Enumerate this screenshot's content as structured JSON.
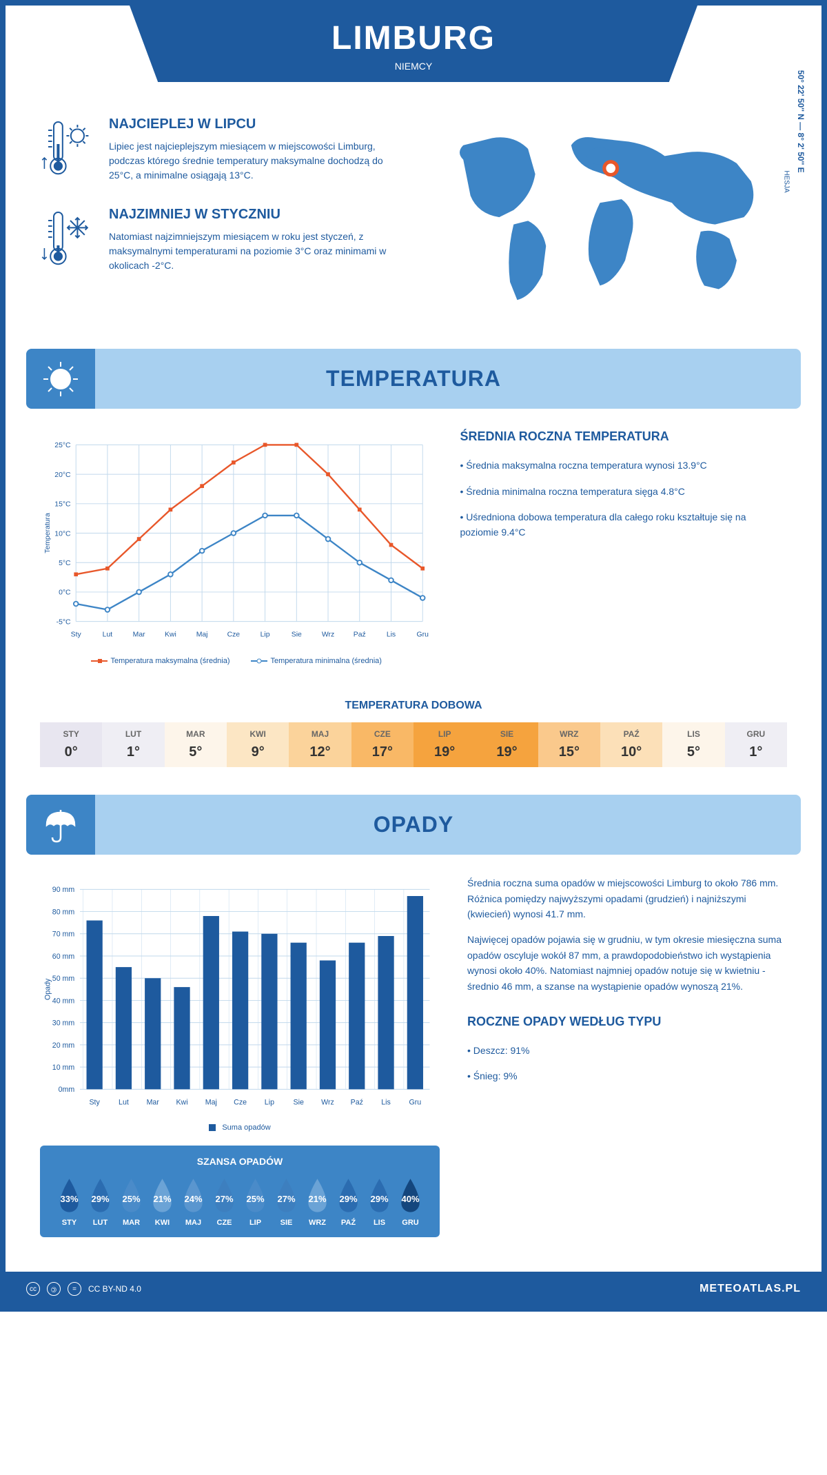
{
  "header": {
    "title": "LIMBURG",
    "subtitle": "NIEMCY"
  },
  "coords": "50° 22' 50'' N — 8° 2' 50'' E",
  "region": "HESJA",
  "warmest": {
    "title": "NAJCIEPLEJ W LIPCU",
    "text": "Lipiec jest najcieplejszym miesiącem w miejscowości Limburg, podczas którego średnie temperatury maksymalne dochodzą do 25°C, a minimalne osiągają 13°C."
  },
  "coldest": {
    "title": "NAJZIMNIEJ W STYCZNIU",
    "text": "Natomiast najzimniejszym miesiącem w roku jest styczeń, z maksymalnymi temperaturami na poziomie 3°C oraz minimami w okolicach -2°C."
  },
  "temp_section": {
    "title": "TEMPERATURA"
  },
  "temp_chart": {
    "type": "line",
    "months": [
      "Sty",
      "Lut",
      "Mar",
      "Kwi",
      "Maj",
      "Cze",
      "Lip",
      "Sie",
      "Wrz",
      "Paź",
      "Lis",
      "Gru"
    ],
    "max_series": [
      3,
      4,
      9,
      14,
      18,
      22,
      25,
      25,
      20,
      14,
      8,
      4
    ],
    "min_series": [
      -2,
      -3,
      0,
      3,
      7,
      10,
      13,
      13,
      9,
      5,
      2,
      -1
    ],
    "max_color": "#e8572a",
    "min_color": "#3d85c6",
    "ylim": [
      -5,
      25
    ],
    "ytick_step": 5,
    "yticks": [
      "-5°C",
      "0°C",
      "5°C",
      "10°C",
      "15°C",
      "20°C",
      "25°C"
    ],
    "ylabel": "Temperatura",
    "grid_color": "#c0d8ec",
    "legend_max": "Temperatura maksymalna (średnia)",
    "legend_min": "Temperatura minimalna (średnia)"
  },
  "temp_desc": {
    "title": "ŚREDNIA ROCZNA TEMPERATURA",
    "p1": "• Średnia maksymalna roczna temperatura wynosi 13.9°C",
    "p2": "• Średnia minimalna roczna temperatura sięga 4.8°C",
    "p3": "• Uśredniona dobowa temperatura dla całego roku kształtuje się na poziomie 9.4°C"
  },
  "daily_temp": {
    "title": "TEMPERATURA DOBOWA",
    "months": [
      "STY",
      "LUT",
      "MAR",
      "KWI",
      "MAJ",
      "CZE",
      "LIP",
      "SIE",
      "WRZ",
      "PAŹ",
      "LIS",
      "GRU"
    ],
    "values": [
      "0°",
      "1°",
      "5°",
      "9°",
      "12°",
      "17°",
      "19°",
      "19°",
      "15°",
      "10°",
      "5°",
      "1°"
    ],
    "colors": [
      "#e8e6f0",
      "#efeef4",
      "#fdf5ea",
      "#fce6c4",
      "#fbd39b",
      "#f9b866",
      "#f5a33e",
      "#f5a33e",
      "#fac98c",
      "#fce0b8",
      "#fdf5ea",
      "#efeef4"
    ]
  },
  "rain_section": {
    "title": "OPADY"
  },
  "rain_chart": {
    "type": "bar",
    "months": [
      "Sty",
      "Lut",
      "Mar",
      "Kwi",
      "Maj",
      "Cze",
      "Lip",
      "Sie",
      "Wrz",
      "Paź",
      "Lis",
      "Gru"
    ],
    "values": [
      76,
      55,
      50,
      46,
      78,
      71,
      70,
      66,
      58,
      66,
      69,
      87
    ],
    "bar_color": "#1e5a9e",
    "ylim": [
      0,
      90
    ],
    "ytick_step": 10,
    "yticks": [
      "0mm",
      "10 mm",
      "20 mm",
      "30 mm",
      "40 mm",
      "50 mm",
      "60 mm",
      "70 mm",
      "80 mm",
      "90 mm"
    ],
    "ylabel": "Opady",
    "legend": "Suma opadów",
    "grid_color": "#c0d8ec"
  },
  "rain_desc": {
    "p1": "Średnia roczna suma opadów w miejscowości Limburg to około 786 mm. Różnica pomiędzy najwyższymi opadami (grudzień) i najniższymi (kwiecień) wynosi 41.7 mm.",
    "p2": "Najwięcej opadów pojawia się w grudniu, w tym okresie miesięczna suma opadów oscyluje wokół 87 mm, a prawdopodobieństwo ich wystąpienia wynosi około 40%. Natomiast najmniej opadów notuje się w kwietniu - średnio 46 mm, a szanse na wystąpienie opadów wynoszą 21%."
  },
  "rain_chance": {
    "title": "SZANSA OPADÓW",
    "months": [
      "STY",
      "LUT",
      "MAR",
      "KWI",
      "MAJ",
      "CZE",
      "LIP",
      "SIE",
      "WRZ",
      "PAŹ",
      "LIS",
      "GRU"
    ],
    "values": [
      "33%",
      "29%",
      "25%",
      "21%",
      "24%",
      "27%",
      "25%",
      "27%",
      "21%",
      "29%",
      "29%",
      "40%"
    ],
    "colors": [
      "#1e5a9e",
      "#2b6cb0",
      "#4a8bc9",
      "#6ba3d6",
      "#5a96cf",
      "#3d7fbf",
      "#4a8bc9",
      "#3d7fbf",
      "#6ba3d6",
      "#2b6cb0",
      "#2b6cb0",
      "#14467d"
    ]
  },
  "rain_types": {
    "title": "ROCZNE OPADY WEDŁUG TYPU",
    "p1": "• Deszcz: 91%",
    "p2": "• Śnieg: 9%"
  },
  "footer": {
    "license": "CC BY-ND 4.0",
    "site": "METEOATLAS.PL"
  }
}
